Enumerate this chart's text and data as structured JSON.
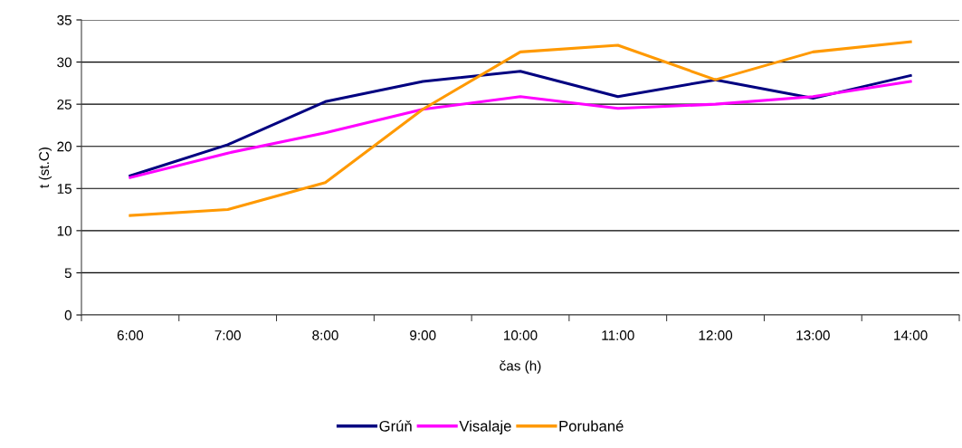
{
  "chart_data": {
    "type": "line",
    "xlabel": "čas (h)",
    "ylabel": "t (st.C)",
    "categories": [
      "6:00",
      "7:00",
      "8:00",
      "9:00",
      "10:00",
      "11:00",
      "12:00",
      "13:00",
      "14:00"
    ],
    "series": [
      {
        "name": "Grúň",
        "color": "#000080",
        "values": [
          16.5,
          20.2,
          25.3,
          27.7,
          28.9,
          25.9,
          27.9,
          25.7,
          28.4
        ]
      },
      {
        "name": "Visalaje",
        "color": "#ff00ff",
        "values": [
          16.3,
          19.2,
          21.6,
          24.4,
          25.9,
          24.5,
          25.0,
          25.9,
          27.7
        ]
      },
      {
        "name": "Porubané",
        "color": "#ff9900",
        "values": [
          11.8,
          12.5,
          15.7,
          24.4,
          31.2,
          32.0,
          27.9,
          31.2,
          32.4
        ]
      }
    ],
    "ylim": [
      0,
      35
    ],
    "yticks": [
      0,
      5,
      10,
      15,
      20,
      25,
      30,
      35
    ],
    "grid": "y",
    "legend": "bottom",
    "marker": "none",
    "line_style": "solid"
  }
}
